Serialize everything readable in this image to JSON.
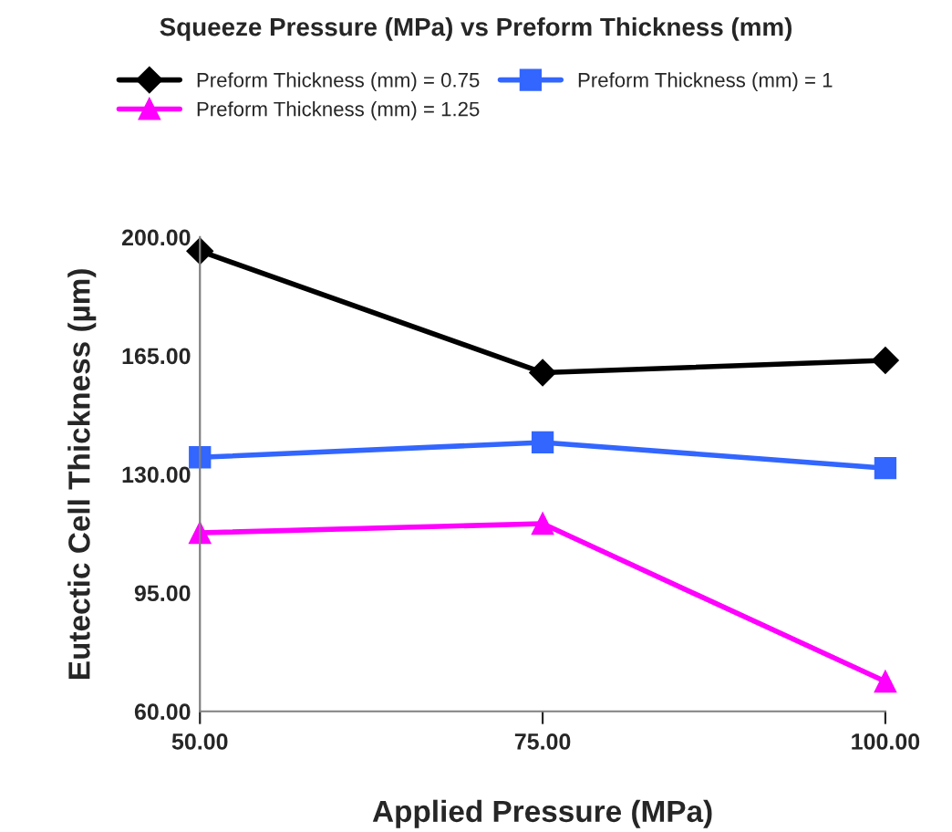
{
  "chart_data": {
    "type": "line",
    "title": "Squeeze Pressure (MPa) vs Preform Thickness (mm)",
    "xlabel": "Applied Pressure (MPa)",
    "ylabel": "Eutectic Cell Thickness (µm)",
    "x": [
      50,
      75,
      100
    ],
    "series": [
      {
        "name": "Preform Thickness (mm) = 0.75",
        "color": "#000000",
        "marker": "diamond",
        "values": [
          195.9,
          160.0,
          163.6
        ]
      },
      {
        "name": "Preform Thickness (mm) = 1",
        "color": "#3366ff",
        "marker": "square",
        "values": [
          135.0,
          139.4,
          131.8
        ]
      },
      {
        "name": "Preform Thickness (mm) = 1.25",
        "color": "#ff00ff",
        "marker": "triangle",
        "values": [
          112.7,
          115.4,
          68.8
        ]
      }
    ],
    "xlim": [
      50,
      100
    ],
    "xticks": [
      {
        "value": 50,
        "label": "50.00"
      },
      {
        "value": 75,
        "label": "75.00"
      },
      {
        "value": 100,
        "label": "100.00"
      }
    ],
    "ylim": [
      60,
      200
    ],
    "yticks": [
      {
        "value": 60,
        "label": "60.00"
      },
      {
        "value": 95,
        "label": "95.00"
      },
      {
        "value": 130,
        "label": "130.00"
      },
      {
        "value": 165,
        "label": "165.00"
      },
      {
        "value": 200,
        "label": "200.00"
      }
    ],
    "grid": false,
    "legend": "top"
  }
}
